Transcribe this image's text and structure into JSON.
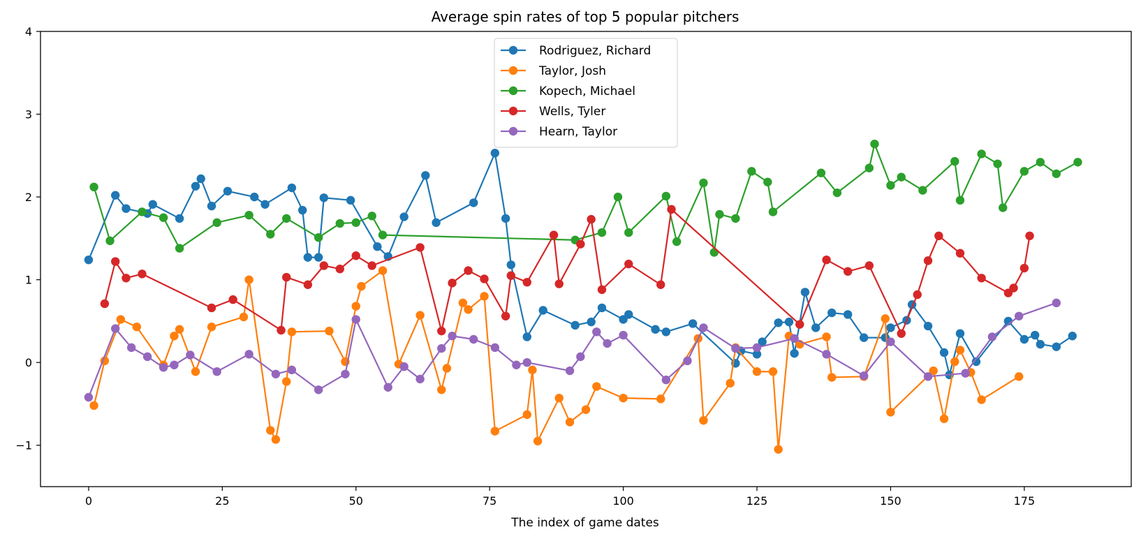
{
  "chart_data": {
    "type": "line",
    "title": "Average spin rates of top 5 popular pitchers",
    "xlabel": "The index of game dates",
    "ylabel": "",
    "xlim": [
      -9,
      195
    ],
    "ylim": [
      -1.5,
      4
    ],
    "xticks": [
      0,
      25,
      50,
      75,
      100,
      125,
      150,
      175
    ],
    "yticks": [
      -1,
      0,
      1,
      2,
      3,
      4
    ],
    "grid": false,
    "legend_position": "upper center",
    "marker": "circle",
    "series": [
      {
        "name": "Rodriguez, Richard",
        "color": "#1f77b4",
        "x": [
          0,
          5,
          7,
          11,
          12,
          17,
          20,
          21,
          23,
          26,
          31,
          33,
          38,
          40,
          41,
          43,
          44,
          49,
          54,
          56,
          59,
          63,
          65,
          72,
          76,
          78,
          79,
          82,
          85,
          91,
          94,
          96,
          100,
          101,
          106,
          108,
          113,
          121,
          122,
          125,
          126,
          129,
          131,
          132,
          134,
          136,
          139,
          142,
          145,
          149,
          150,
          153,
          154,
          157,
          160,
          161,
          163,
          166,
          172,
          175,
          177,
          178,
          181,
          184
        ],
        "y": [
          1.24,
          2.02,
          1.86,
          1.8,
          1.91,
          1.74,
          2.13,
          2.22,
          1.89,
          2.07,
          2.0,
          1.91,
          2.11,
          1.84,
          1.27,
          1.27,
          1.99,
          1.96,
          1.4,
          1.28,
          1.76,
          2.26,
          1.69,
          1.93,
          2.53,
          1.74,
          1.18,
          0.31,
          0.63,
          0.45,
          0.49,
          0.66,
          0.52,
          0.58,
          0.4,
          0.37,
          0.47,
          -0.01,
          0.14,
          0.1,
          0.25,
          0.48,
          0.49,
          0.11,
          0.85,
          0.42,
          0.6,
          0.58,
          0.3,
          0.3,
          0.42,
          0.51,
          0.7,
          0.44,
          0.12,
          -0.15,
          0.35,
          0.01,
          0.5,
          0.28,
          0.33,
          0.22,
          0.19,
          0.32
        ]
      },
      {
        "name": "Taylor, Josh",
        "color": "#ff7f0e",
        "x": [
          1,
          3,
          6,
          9,
          14,
          16,
          17,
          20,
          23,
          29,
          30,
          34,
          35,
          37,
          38,
          45,
          48,
          50,
          51,
          55,
          58,
          62,
          66,
          67,
          70,
          71,
          74,
          76,
          82,
          83,
          84,
          88,
          90,
          93,
          95,
          100,
          107,
          114,
          115,
          120,
          121,
          125,
          128,
          129,
          131,
          133,
          138,
          139,
          145,
          149,
          150,
          158,
          160,
          162,
          163,
          165,
          167,
          174
        ],
        "y": [
          -0.52,
          0.02,
          0.52,
          0.43,
          -0.03,
          0.32,
          0.4,
          -0.11,
          0.43,
          0.55,
          1.0,
          -0.82,
          -0.93,
          -0.23,
          0.37,
          0.38,
          0.01,
          0.68,
          0.92,
          1.11,
          -0.02,
          0.57,
          -0.33,
          -0.07,
          0.72,
          0.64,
          0.8,
          -0.83,
          -0.63,
          -0.09,
          -0.95,
          -0.43,
          -0.72,
          -0.57,
          -0.29,
          -0.43,
          -0.44,
          0.29,
          -0.7,
          -0.25,
          0.18,
          -0.11,
          -0.11,
          -1.05,
          0.32,
          0.22,
          0.31,
          -0.18,
          -0.17,
          0.53,
          -0.6,
          -0.1,
          -0.68,
          0.01,
          0.15,
          -0.12,
          -0.45,
          -0.17
        ]
      },
      {
        "name": "Kopech, Michael",
        "color": "#2ca02c",
        "x": [
          1,
          4,
          10,
          14,
          17,
          24,
          30,
          34,
          37,
          43,
          47,
          50,
          53,
          55,
          91,
          96,
          99,
          101,
          108,
          110,
          115,
          117,
          118,
          121,
          124,
          127,
          128,
          137,
          140,
          146,
          147,
          150,
          152,
          156,
          162,
          163,
          167,
          170,
          171,
          175,
          178,
          181,
          185
        ],
        "y": [
          2.12,
          1.47,
          1.82,
          1.75,
          1.38,
          1.69,
          1.78,
          1.55,
          1.74,
          1.51,
          1.68,
          1.69,
          1.77,
          1.54,
          1.48,
          1.57,
          2.0,
          1.57,
          2.01,
          1.46,
          2.17,
          1.33,
          1.79,
          1.74,
          2.31,
          2.18,
          1.82,
          2.29,
          2.05,
          2.35,
          2.64,
          2.14,
          2.24,
          2.08,
          2.43,
          1.96,
          2.52,
          2.4,
          1.87,
          2.31,
          2.42,
          2.28,
          2.42
        ]
      },
      {
        "name": "Wells, Tyler",
        "color": "#d62728",
        "x": [
          3,
          5,
          7,
          10,
          23,
          27,
          36,
          37,
          41,
          44,
          47,
          50,
          53,
          62,
          66,
          68,
          71,
          74,
          78,
          79,
          82,
          87,
          88,
          92,
          94,
          96,
          101,
          107,
          109,
          133,
          138,
          142,
          146,
          152,
          155,
          157,
          159,
          163,
          167,
          172,
          173,
          175,
          176
        ],
        "y": [
          0.71,
          1.22,
          1.02,
          1.07,
          0.66,
          0.76,
          0.39,
          1.03,
          0.94,
          1.17,
          1.13,
          1.29,
          1.17,
          1.39,
          0.38,
          0.96,
          1.11,
          1.01,
          0.56,
          1.05,
          0.97,
          1.54,
          0.95,
          1.43,
          1.73,
          0.88,
          1.19,
          0.94,
          1.85,
          0.46,
          1.24,
          1.1,
          1.17,
          0.35,
          0.82,
          1.23,
          1.53,
          1.32,
          1.02,
          0.84,
          0.9,
          1.14,
          1.53
        ]
      },
      {
        "name": "Hearn, Taylor",
        "color": "#9467bd",
        "x": [
          0,
          5,
          8,
          11,
          14,
          16,
          19,
          24,
          30,
          35,
          38,
          43,
          48,
          50,
          56,
          59,
          62,
          66,
          68,
          72,
          76,
          80,
          82,
          90,
          92,
          95,
          97,
          100,
          108,
          112,
          115,
          121,
          125,
          132,
          138,
          145,
          150,
          157,
          164,
          169,
          174,
          181
        ],
        "y": [
          -0.42,
          0.41,
          0.18,
          0.07,
          -0.06,
          -0.03,
          0.09,
          -0.11,
          0.1,
          -0.14,
          -0.09,
          -0.33,
          -0.14,
          0.52,
          -0.3,
          -0.05,
          -0.2,
          0.17,
          0.32,
          0.28,
          0.18,
          -0.03,
          0.0,
          -0.1,
          0.07,
          0.37,
          0.23,
          0.33,
          -0.21,
          0.02,
          0.42,
          0.17,
          0.18,
          0.29,
          0.1,
          -0.16,
          0.25,
          -0.17,
          -0.13,
          0.31,
          0.56,
          0.72
        ]
      }
    ]
  }
}
